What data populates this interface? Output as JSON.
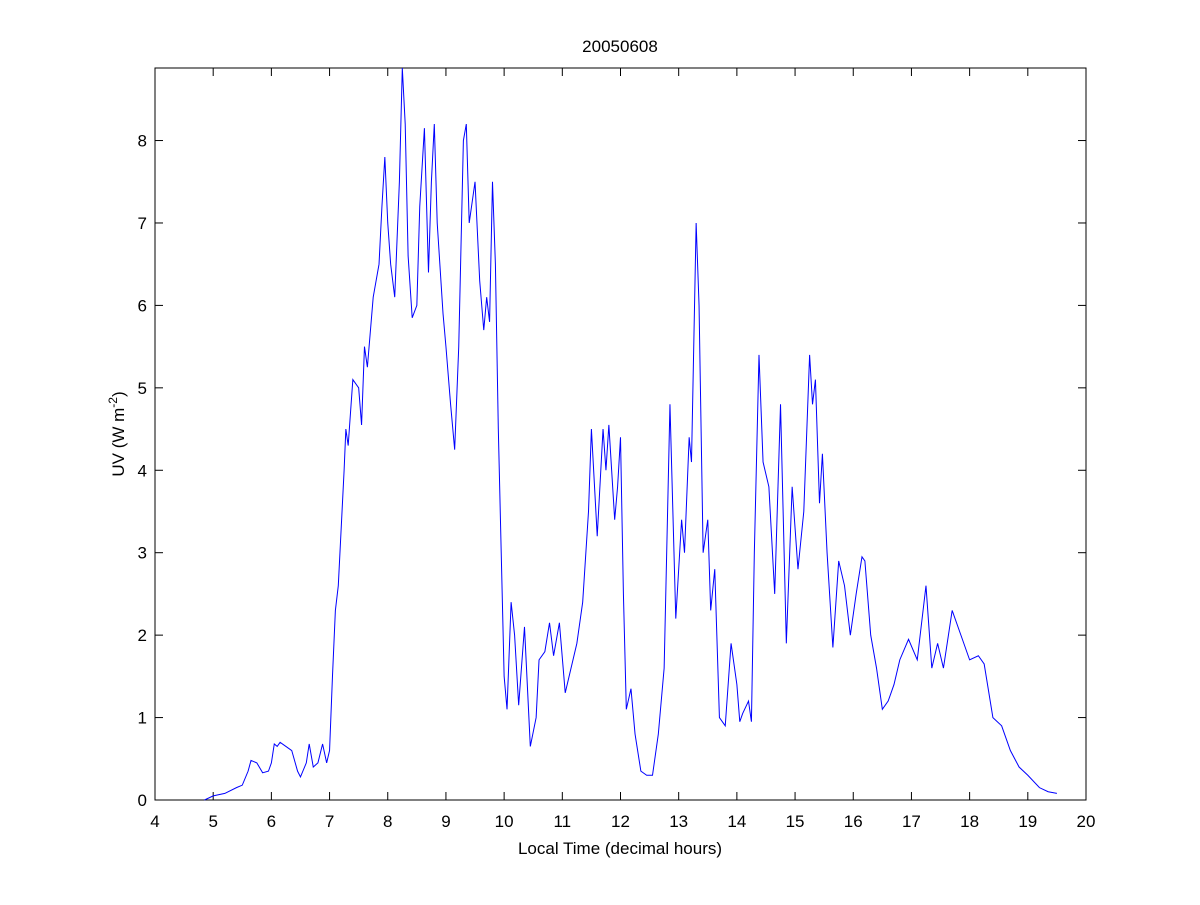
{
  "chart_data": {
    "type": "line",
    "title": "20050608",
    "xlabel": "Local Time (decimal hours)",
    "ylabel_parts": [
      "UV (W m",
      "-2",
      ")"
    ],
    "xlim": [
      4,
      20
    ],
    "xticks": [
      4,
      5,
      6,
      7,
      8,
      9,
      10,
      11,
      12,
      13,
      14,
      15,
      16,
      17,
      18,
      19,
      20
    ],
    "ylim": [
      0,
      8.88
    ],
    "yticks": [
      0,
      1,
      2,
      3,
      4,
      5,
      6,
      7,
      8
    ],
    "series": [
      {
        "color": "#0000ff",
        "x": [
          4.85,
          5.0,
          5.2,
          5.4,
          5.5,
          5.6,
          5.65,
          5.75,
          5.85,
          5.95,
          6.0,
          6.05,
          6.1,
          6.15,
          6.25,
          6.35,
          6.45,
          6.5,
          6.6,
          6.65,
          6.72,
          6.8,
          6.88,
          6.95,
          7.0,
          7.05,
          7.1,
          7.15,
          7.2,
          7.25,
          7.28,
          7.32,
          7.4,
          7.5,
          7.55,
          7.6,
          7.65,
          7.75,
          7.85,
          7.9,
          7.95,
          8.0,
          8.05,
          8.12,
          8.2,
          8.25,
          8.3,
          8.35,
          8.42,
          8.5,
          8.55,
          8.63,
          8.7,
          8.75,
          8.8,
          8.85,
          8.95,
          9.0,
          9.08,
          9.15,
          9.22,
          9.3,
          9.35,
          9.4,
          9.5,
          9.58,
          9.65,
          9.7,
          9.75,
          9.8,
          9.85,
          9.9,
          9.95,
          10.0,
          10.05,
          10.12,
          10.18,
          10.25,
          10.35,
          10.45,
          10.55,
          10.6,
          10.7,
          10.78,
          10.85,
          10.95,
          11.05,
          11.15,
          11.25,
          11.35,
          11.45,
          11.5,
          11.6,
          11.7,
          11.75,
          11.8,
          11.9,
          11.95,
          12.0,
          12.05,
          12.1,
          12.18,
          12.25,
          12.35,
          12.45,
          12.55,
          12.65,
          12.75,
          12.85,
          12.95,
          13.05,
          13.1,
          13.18,
          13.22,
          13.3,
          13.35,
          13.42,
          13.5,
          13.55,
          13.62,
          13.7,
          13.8,
          13.9,
          14.0,
          14.05,
          14.1,
          14.2,
          14.25,
          14.3,
          14.38,
          14.45,
          14.55,
          14.65,
          14.75,
          14.85,
          14.95,
          15.05,
          15.15,
          15.25,
          15.3,
          15.35,
          15.42,
          15.47,
          15.55,
          15.65,
          15.75,
          15.85,
          15.95,
          16.05,
          16.15,
          16.2,
          16.3,
          16.4,
          16.5,
          16.6,
          16.7,
          16.8,
          16.95,
          17.1,
          17.25,
          17.35,
          17.45,
          17.55,
          17.7,
          17.85,
          18.0,
          18.15,
          18.25,
          18.4,
          18.55,
          18.7,
          18.85,
          19.0,
          19.2,
          19.35,
          19.5
        ],
        "values": [
          0,
          0.05,
          0.08,
          0.15,
          0.18,
          0.35,
          0.48,
          0.45,
          0.33,
          0.35,
          0.45,
          0.68,
          0.65,
          0.7,
          0.65,
          0.6,
          0.35,
          0.28,
          0.45,
          0.68,
          0.4,
          0.45,
          0.68,
          0.45,
          0.6,
          1.5,
          2.3,
          2.6,
          3.3,
          4.0,
          4.5,
          4.3,
          5.1,
          5.0,
          4.55,
          5.5,
          5.25,
          6.1,
          6.5,
          7.2,
          7.8,
          7.0,
          6.5,
          6.1,
          7.5,
          8.88,
          8.2,
          6.6,
          5.85,
          6.0,
          7.2,
          8.15,
          6.4,
          7.5,
          8.2,
          7.0,
          5.9,
          5.5,
          4.8,
          4.25,
          5.5,
          8.0,
          8.2,
          7.0,
          7.5,
          6.3,
          5.7,
          6.1,
          5.8,
          7.5,
          6.5,
          4.5,
          3.0,
          1.5,
          1.1,
          2.4,
          2.0,
          1.15,
          2.1,
          0.65,
          1.0,
          1.7,
          1.8,
          2.15,
          1.75,
          2.15,
          1.3,
          1.6,
          1.9,
          2.4,
          3.5,
          4.5,
          3.2,
          4.5,
          4.0,
          4.55,
          3.4,
          3.8,
          4.4,
          2.5,
          1.1,
          1.35,
          0.8,
          0.35,
          0.3,
          0.3,
          0.8,
          1.6,
          4.8,
          2.2,
          3.4,
          3.0,
          4.4,
          4.1,
          7.0,
          6.0,
          3.0,
          3.4,
          2.3,
          2.8,
          1.0,
          0.9,
          1.9,
          1.4,
          0.95,
          1.05,
          1.2,
          0.95,
          3.0,
          5.4,
          4.1,
          3.8,
          2.5,
          4.8,
          1.9,
          3.8,
          2.8,
          3.5,
          5.4,
          4.8,
          5.1,
          3.6,
          4.2,
          3.0,
          1.85,
          2.9,
          2.6,
          2.0,
          2.5,
          2.95,
          2.9,
          2.0,
          1.6,
          1.1,
          1.2,
          1.4,
          1.7,
          1.95,
          1.7,
          2.6,
          1.6,
          1.9,
          1.6,
          2.3,
          2.0,
          1.7,
          1.75,
          1.65,
          1.0,
          0.9,
          0.6,
          0.4,
          0.3,
          0.15,
          0.1,
          0.08
        ]
      }
    ]
  }
}
